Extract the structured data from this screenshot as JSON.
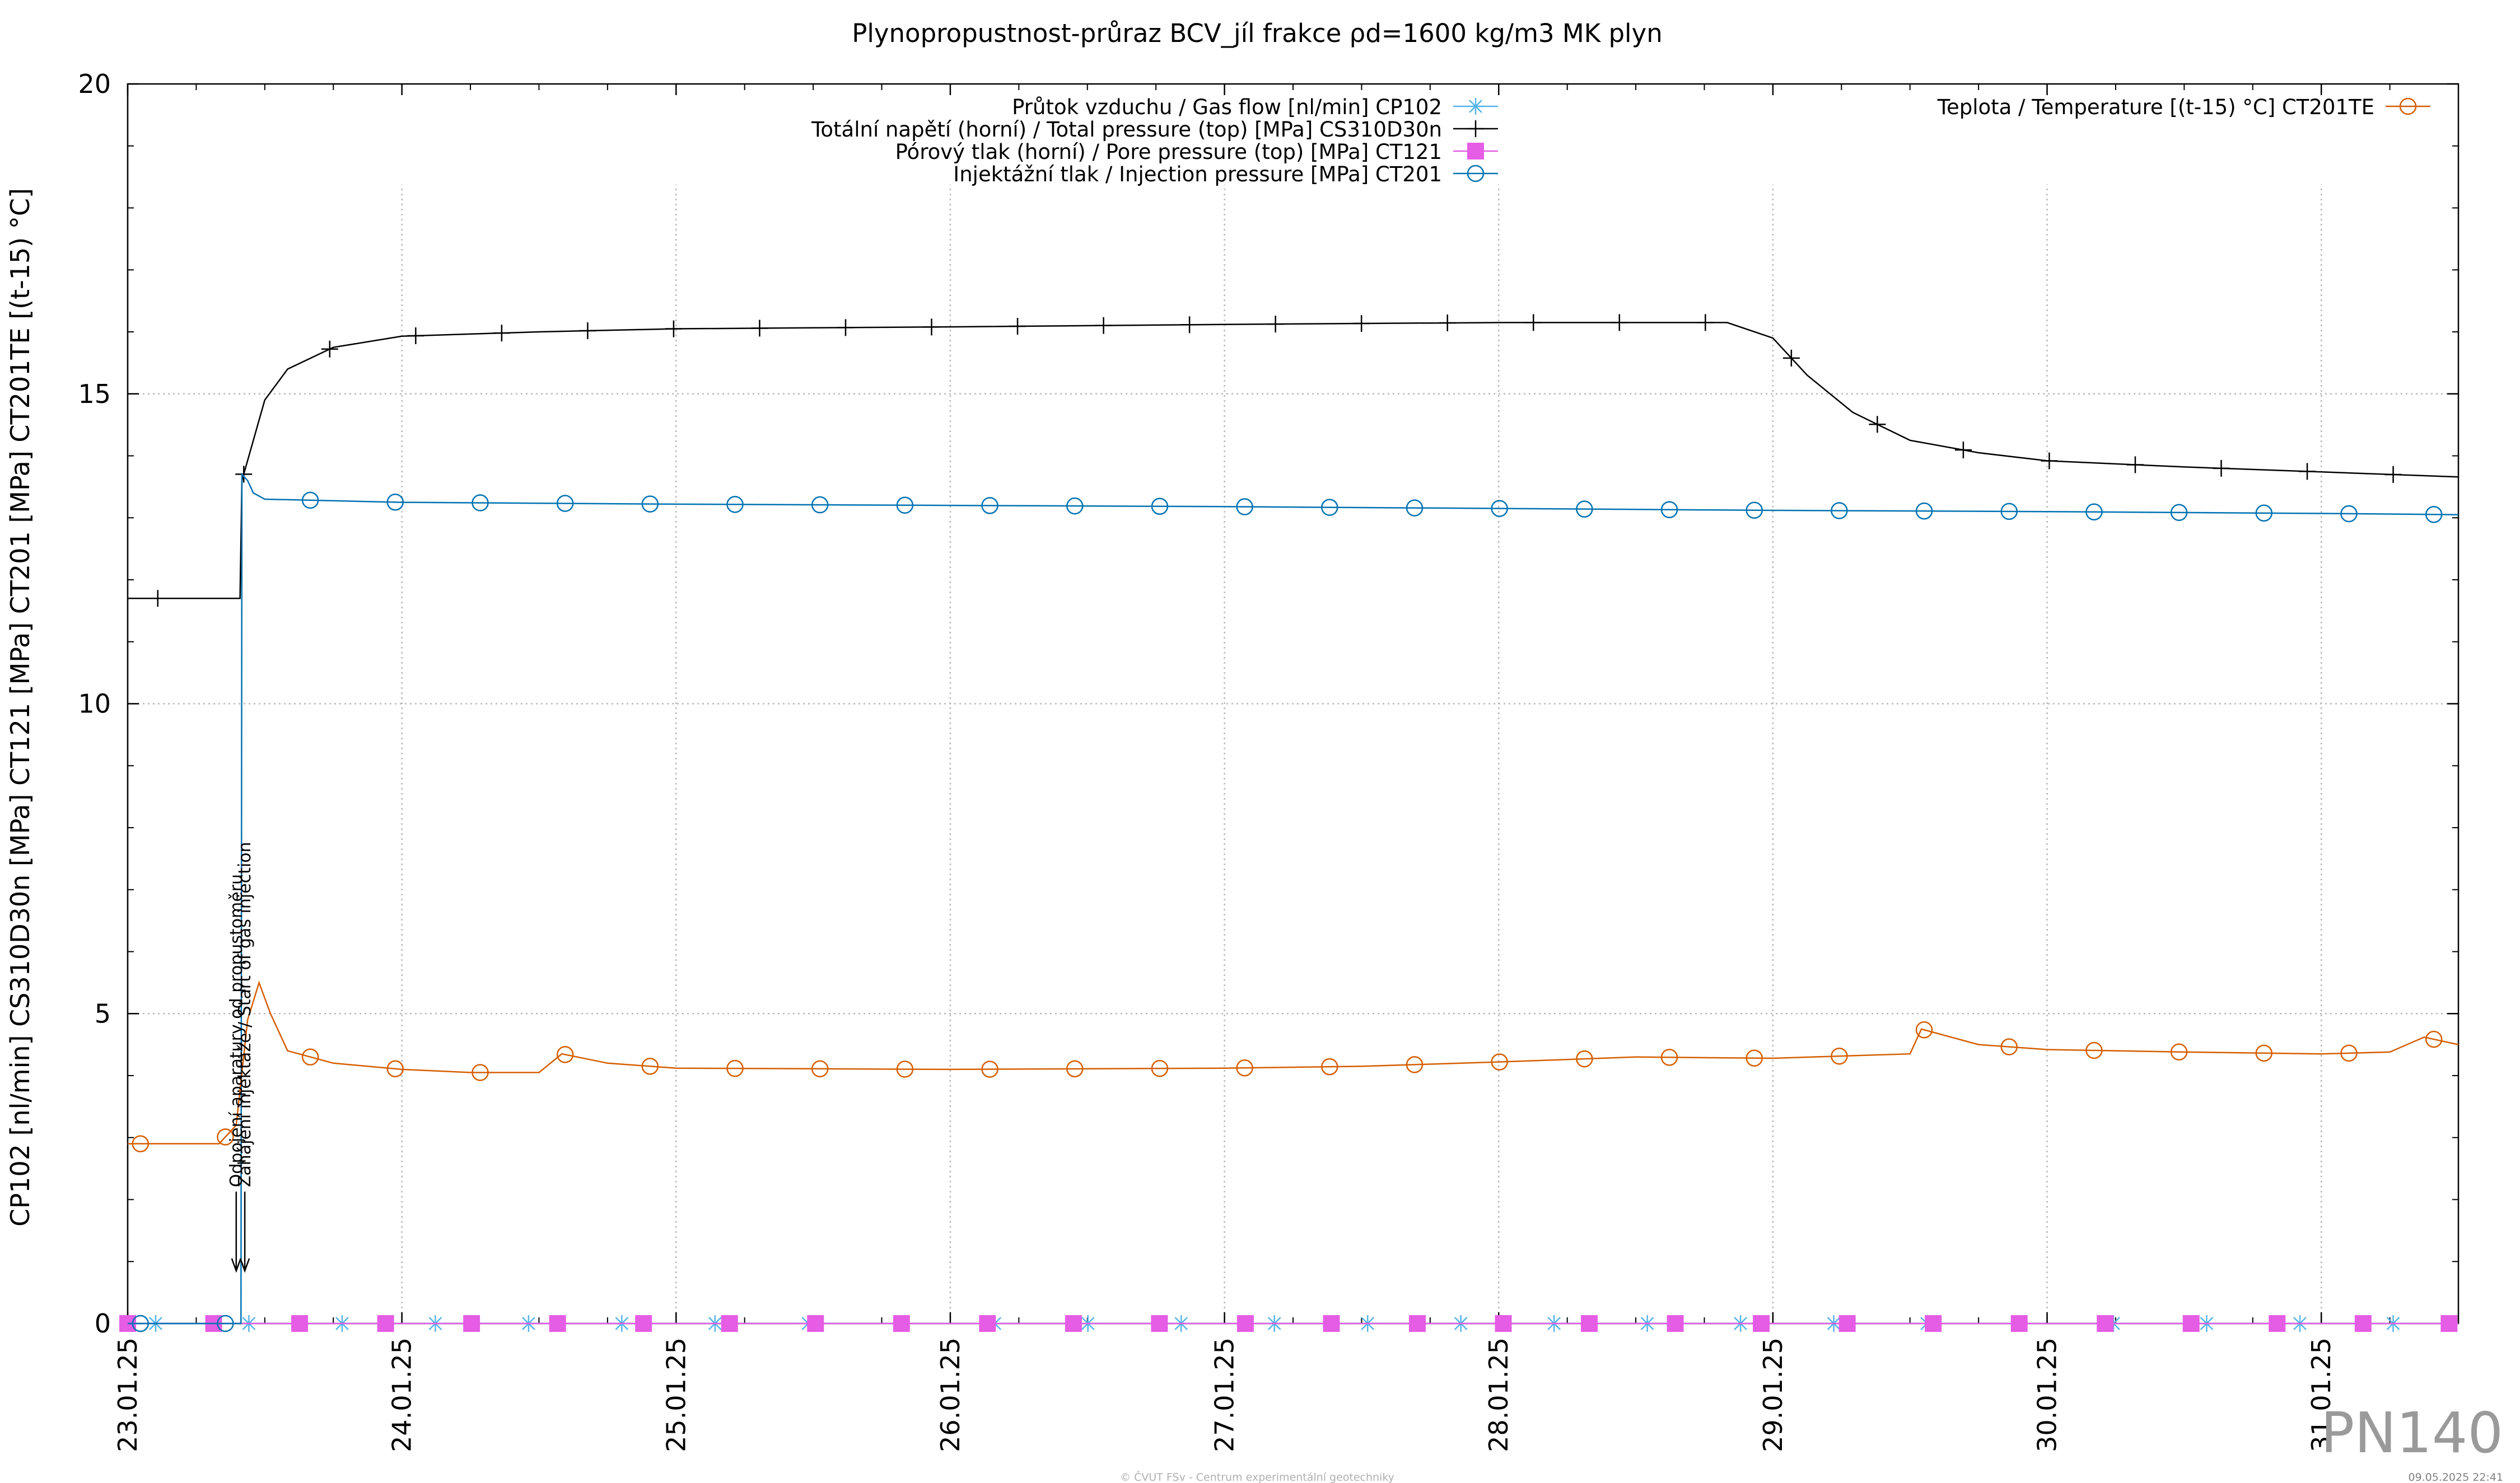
{
  "chart_data": {
    "type": "line",
    "title": "Plynopropustnost-průraz BCV_jíl frakce ρd=1600 kg/m3 MK plyn",
    "ylabel": "CP102 [nl/min] CS310D30n [MPa] CT121 [MPa] CT201 [MPa] CT201TE [(t-15) °C]",
    "xlabel": "",
    "xlim": [
      "23.01.25 00:00",
      "31.01.25 12:00"
    ],
    "ylim": [
      0,
      20
    ],
    "grid": true,
    "x_ticks": [
      "23.01.25",
      "24.01.25",
      "25.01.25",
      "26.01.25",
      "27.01.25",
      "28.01.25",
      "29.01.25",
      "30.01.25",
      "31.01.25"
    ],
    "y_ticks": [
      "0",
      "5",
      "10",
      "15",
      "20"
    ],
    "legend_left_placement": "top-center",
    "legend_right_placement": "top-right",
    "series": [
      {
        "name": "Průtok vzduchu / Gas flow [nl/min] CP102",
        "color": "#56b4e9",
        "marker": "asterisk",
        "points": [
          [
            "23.01.25 00:00",
            0
          ],
          [
            "31.01.25 12:00",
            0
          ]
        ]
      },
      {
        "name": "Totální napětí (horní) / Total pressure (top) [MPa] CS310D30n",
        "color": "#000000",
        "marker": "plus",
        "points": [
          [
            "23.01.25 00:00",
            11.7
          ],
          [
            "23.01.25 09:50",
            11.7
          ],
          [
            "23.01.25 10:00",
            13.6
          ],
          [
            "23.01.25 12:00",
            14.9
          ],
          [
            "23.01.25 14:00",
            15.4
          ],
          [
            "23.01.25 18:00",
            15.75
          ],
          [
            "24.01.25 00:00",
            15.93
          ],
          [
            "24.01.25 12:00",
            16.0
          ],
          [
            "25.01.25 00:00",
            16.05
          ],
          [
            "26.01.25 00:00",
            16.08
          ],
          [
            "27.01.25 00:00",
            16.12
          ],
          [
            "28.01.25 00:00",
            16.15
          ],
          [
            "28.01.25 20:00",
            16.15
          ],
          [
            "29.01.25 00:00",
            15.9
          ],
          [
            "29.01.25 03:00",
            15.3
          ],
          [
            "29.01.25 07:00",
            14.7
          ],
          [
            "29.01.25 12:00",
            14.25
          ],
          [
            "29.01.25 18:00",
            14.05
          ],
          [
            "30.01.25 00:00",
            13.92
          ],
          [
            "30.01.25 12:00",
            13.82
          ],
          [
            "31.01.25 00:00",
            13.74
          ],
          [
            "31.01.25 12:00",
            13.66
          ]
        ]
      },
      {
        "name": "Pórový tlak (horní) / Pore pressure (top) [MPa] CT121",
        "color": "#e55ce5",
        "marker": "square",
        "points": [
          [
            "23.01.25 00:00",
            0
          ],
          [
            "31.01.25 12:00",
            0
          ]
        ]
      },
      {
        "name": "Injektážní tlak / Injection pressure [MPa] CT201",
        "color": "#0072b2",
        "marker": "circle",
        "points": [
          [
            "23.01.25 00:00",
            0
          ],
          [
            "23.01.25 09:55",
            0
          ],
          [
            "23.01.25 10:00",
            13.7
          ],
          [
            "23.01.25 10:30",
            13.6
          ],
          [
            "23.01.25 11:00",
            13.4
          ],
          [
            "23.01.25 12:00",
            13.3
          ],
          [
            "24.01.25 00:00",
            13.25
          ],
          [
            "25.01.25 00:00",
            13.22
          ],
          [
            "26.01.25 00:00",
            13.2
          ],
          [
            "27.01.25 00:00",
            13.18
          ],
          [
            "28.01.25 00:00",
            13.15
          ],
          [
            "29.01.25 00:00",
            13.12
          ],
          [
            "30.01.25 00:00",
            13.1
          ],
          [
            "31.01.25 00:00",
            13.07
          ],
          [
            "31.01.25 12:00",
            13.05
          ]
        ]
      },
      {
        "name": "Teplota / Temperature [(t-15) °C] CT201TE",
        "color": "#d55e00",
        "marker": "circle",
        "points": [
          [
            "23.01.25 00:00",
            2.9
          ],
          [
            "23.01.25 08:00",
            2.9
          ],
          [
            "23.01.25 09:30",
            3.2
          ],
          [
            "23.01.25 10:30",
            4.9
          ],
          [
            "23.01.25 11:30",
            5.5
          ],
          [
            "23.01.25 12:30",
            5.0
          ],
          [
            "23.01.25 14:00",
            4.4
          ],
          [
            "23.01.25 18:00",
            4.2
          ],
          [
            "24.01.25 00:00",
            4.1
          ],
          [
            "24.01.25 06:00",
            4.05
          ],
          [
            "24.01.25 12:00",
            4.05
          ],
          [
            "24.01.25 14:00",
            4.35
          ],
          [
            "24.01.25 18:00",
            4.2
          ],
          [
            "25.01.25 00:00",
            4.12
          ],
          [
            "26.01.25 00:00",
            4.1
          ],
          [
            "27.01.25 00:00",
            4.12
          ],
          [
            "27.01.25 12:00",
            4.15
          ],
          [
            "28.01.25 00:00",
            4.22
          ],
          [
            "28.01.25 12:00",
            4.3
          ],
          [
            "29.01.25 00:00",
            4.28
          ],
          [
            "29.01.25 12:00",
            4.35
          ],
          [
            "29.01.25 13:00",
            4.75
          ],
          [
            "29.01.25 18:00",
            4.5
          ],
          [
            "30.01.25 00:00",
            4.42
          ],
          [
            "30.01.25 12:00",
            4.38
          ],
          [
            "31.01.25 00:00",
            4.35
          ],
          [
            "31.01.25 06:00",
            4.38
          ],
          [
            "31.01.25 09:00",
            4.62
          ],
          [
            "31.01.25 12:00",
            4.5
          ]
        ]
      }
    ],
    "annotations": [
      {
        "text": "Odpojení aparatury od propustoměru",
        "x": "23.01.25 09:30",
        "y_top": 2.2,
        "y_arrow": 0.85
      },
      {
        "text": "Zahájení injektáže / Start of gas injection",
        "x": "23.01.25 10:15",
        "y_top": 2.2,
        "y_arrow": 0.85
      }
    ]
  },
  "watermark": "PN140",
  "footer_center": "© ČVUT FSv - Centrum experimentální geotechniky",
  "footer_right": "09.05.2025 22:41"
}
